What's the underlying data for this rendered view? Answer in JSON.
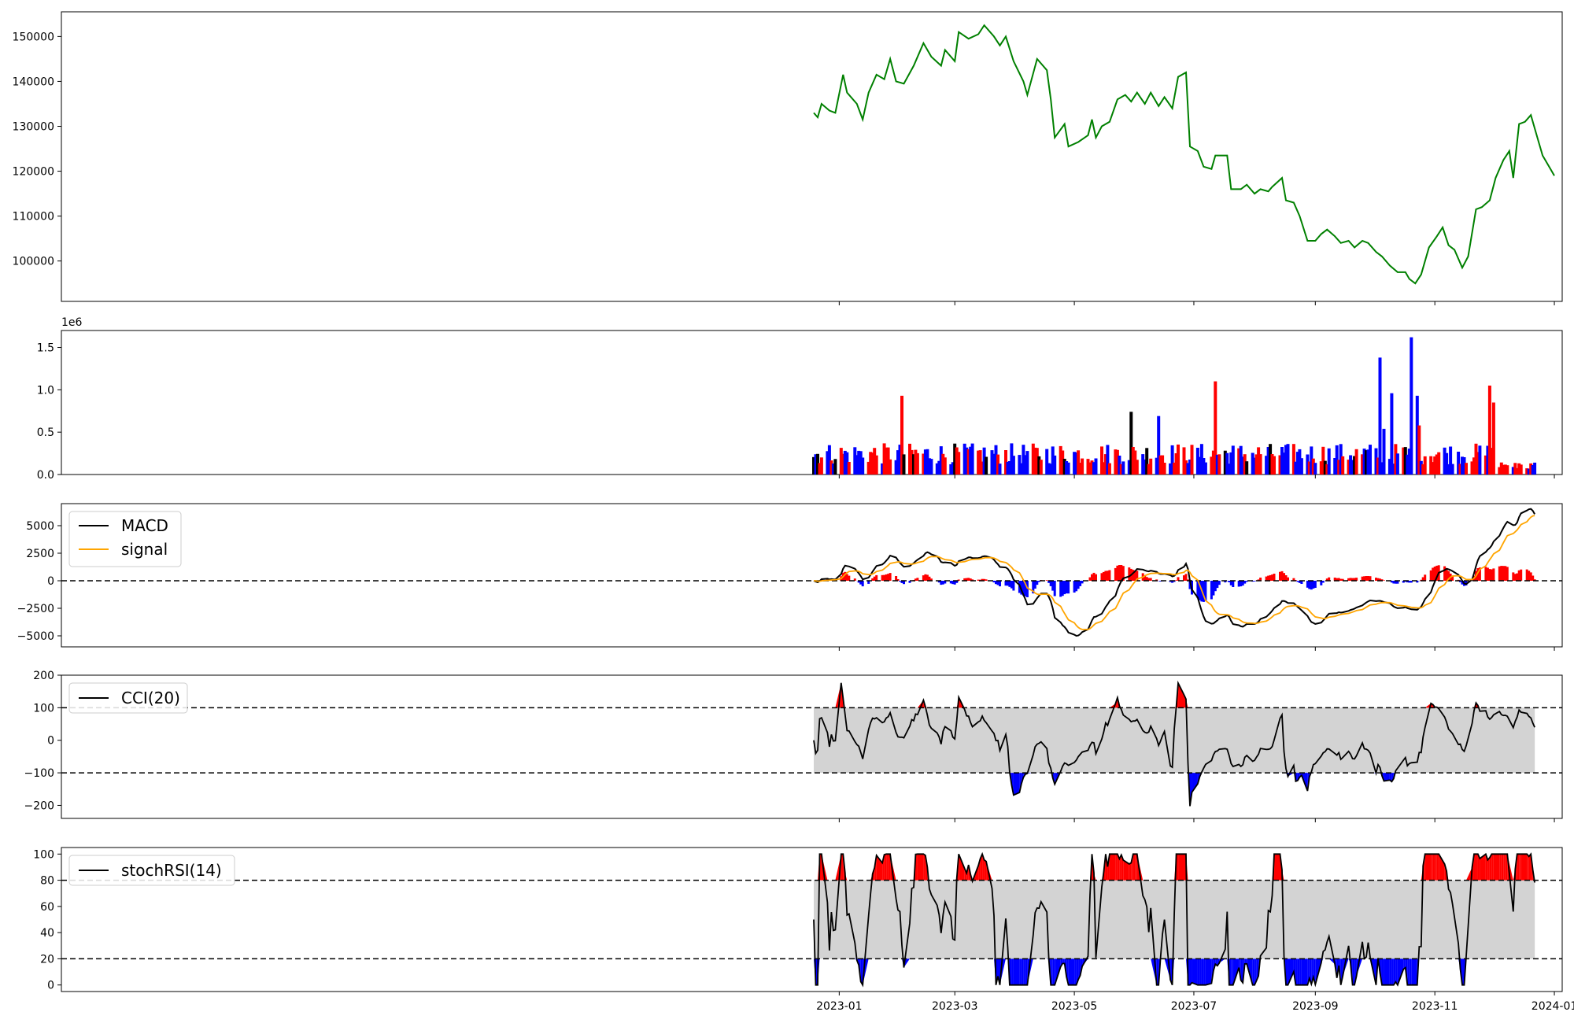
{
  "figure": {
    "x_ticks": [
      "2023-01",
      "2023-03",
      "2023-05",
      "2023-07",
      "2023-09",
      "2023-11",
      "2024-01"
    ],
    "x_tick_dates": [
      "2023-01-01",
      "2023-03-01",
      "2023-05-01",
      "2023-07-01",
      "2023-09-01",
      "2023-11-01",
      "2024-01-01"
    ],
    "x_range": [
      "2021-11-30",
      "2024-01-05"
    ],
    "colors": {
      "up": "#ff0000",
      "down": "#0000ff",
      "price": "#008000",
      "band": "#d3d3d3",
      "signal": "#ffa500",
      "line": "#000000"
    }
  },
  "chart_data": [
    {
      "type": "line",
      "panel": "price",
      "series": [
        {
          "color": "#008000",
          "points": [
            [
              "2022-12-19",
              133000
            ],
            [
              "2022-12-21",
              132000
            ],
            [
              "2022-12-23",
              135000
            ],
            [
              "2022-12-27",
              133500
            ],
            [
              "2022-12-30",
              133000
            ],
            [
              "2023-01-03",
              141500
            ],
            [
              "2023-01-05",
              137500
            ],
            [
              "2023-01-10",
              135000
            ],
            [
              "2023-01-13",
              131500
            ],
            [
              "2023-01-16",
              137500
            ],
            [
              "2023-01-20",
              141500
            ],
            [
              "2023-01-24",
              140500
            ],
            [
              "2023-01-27",
              145000
            ],
            [
              "2023-01-30",
              140000
            ],
            [
              "2023-02-03",
              139500
            ],
            [
              "2023-02-08",
              143500
            ],
            [
              "2023-02-13",
              148500
            ],
            [
              "2023-02-17",
              145500
            ],
            [
              "2023-02-22",
              143500
            ],
            [
              "2023-02-24",
              147000
            ],
            [
              "2023-03-01",
              144500
            ],
            [
              "2023-03-03",
              151000
            ],
            [
              "2023-03-08",
              149500
            ],
            [
              "2023-03-13",
              150500
            ],
            [
              "2023-03-16",
              152500
            ],
            [
              "2023-03-21",
              150000
            ],
            [
              "2023-03-24",
              148000
            ],
            [
              "2023-03-27",
              150000
            ],
            [
              "2023-03-31",
              144500
            ],
            [
              "2023-04-05",
              140000
            ],
            [
              "2023-04-07",
              137000
            ],
            [
              "2023-04-12",
              145000
            ],
            [
              "2023-04-17",
              142500
            ],
            [
              "2023-04-19",
              136000
            ],
            [
              "2023-04-21",
              127500
            ],
            [
              "2023-04-26",
              130500
            ],
            [
              "2023-04-28",
              125500
            ],
            [
              "2023-05-03",
              126500
            ],
            [
              "2023-05-08",
              128000
            ],
            [
              "2023-05-10",
              131500
            ],
            [
              "2023-05-12",
              127500
            ],
            [
              "2023-05-15",
              130000
            ],
            [
              "2023-05-19",
              131000
            ],
            [
              "2023-05-23",
              136000
            ],
            [
              "2023-05-27",
              137000
            ],
            [
              "2023-05-30",
              135500
            ],
            [
              "2023-06-02",
              137500
            ],
            [
              "2023-06-06",
              135000
            ],
            [
              "2023-06-09",
              137500
            ],
            [
              "2023-06-13",
              134500
            ],
            [
              "2023-06-16",
              136500
            ],
            [
              "2023-06-20",
              134000
            ],
            [
              "2023-06-23",
              141000
            ],
            [
              "2023-06-27",
              142000
            ],
            [
              "2023-06-29",
              125500
            ],
            [
              "2023-07-03",
              124500
            ],
            [
              "2023-07-06",
              121000
            ],
            [
              "2023-07-10",
              120500
            ],
            [
              "2023-07-12",
              123500
            ],
            [
              "2023-07-18",
              123500
            ],
            [
              "2023-07-20",
              116000
            ],
            [
              "2023-07-25",
              116000
            ],
            [
              "2023-07-28",
              117000
            ],
            [
              "2023-08-01",
              115000
            ],
            [
              "2023-08-04",
              116000
            ],
            [
              "2023-08-08",
              115500
            ],
            [
              "2023-08-10",
              116500
            ],
            [
              "2023-08-15",
              118500
            ],
            [
              "2023-08-17",
              113500
            ],
            [
              "2023-08-21",
              113000
            ],
            [
              "2023-08-24",
              110000
            ],
            [
              "2023-08-28",
              104500
            ],
            [
              "2023-09-01",
              104500
            ],
            [
              "2023-09-04",
              106000
            ],
            [
              "2023-09-07",
              107000
            ],
            [
              "2023-09-11",
              105500
            ],
            [
              "2023-09-14",
              104000
            ],
            [
              "2023-09-18",
              104500
            ],
            [
              "2023-09-21",
              103000
            ],
            [
              "2023-09-25",
              104500
            ],
            [
              "2023-09-28",
              104000
            ],
            [
              "2023-10-02",
              102000
            ],
            [
              "2023-10-05",
              101000
            ],
            [
              "2023-10-09",
              99000
            ],
            [
              "2023-10-13",
              97500
            ],
            [
              "2023-10-17",
              97500
            ],
            [
              "2023-10-19",
              96000
            ],
            [
              "2023-10-22",
              95000
            ],
            [
              "2023-10-25",
              97000
            ],
            [
              "2023-10-29",
              103000
            ],
            [
              "2023-11-02",
              105500
            ],
            [
              "2023-11-05",
              107500
            ],
            [
              "2023-11-08",
              103500
            ],
            [
              "2023-11-11",
              102500
            ],
            [
              "2023-11-15",
              98500
            ],
            [
              "2023-11-18",
              101000
            ],
            [
              "2023-11-22",
              111500
            ],
            [
              "2023-11-25",
              112000
            ],
            [
              "2023-11-29",
              113500
            ],
            [
              "2023-12-02",
              118500
            ],
            [
              "2023-12-06",
              122500
            ],
            [
              "2023-12-09",
              124500
            ],
            [
              "2023-12-11",
              118500
            ],
            [
              "2023-12-14",
              130500
            ],
            [
              "2023-12-17",
              131000
            ],
            [
              "2023-12-20",
              132500
            ],
            [
              "2023-12-23",
              128000
            ],
            [
              "2023-12-26",
              123500
            ],
            [
              "2023-12-30",
              120500
            ],
            [
              "2024-01-01",
              119000
            ],
            [
              "2023-09-01",
              104500
            ]
          ]
        }
      ]
    }
  ]
}
